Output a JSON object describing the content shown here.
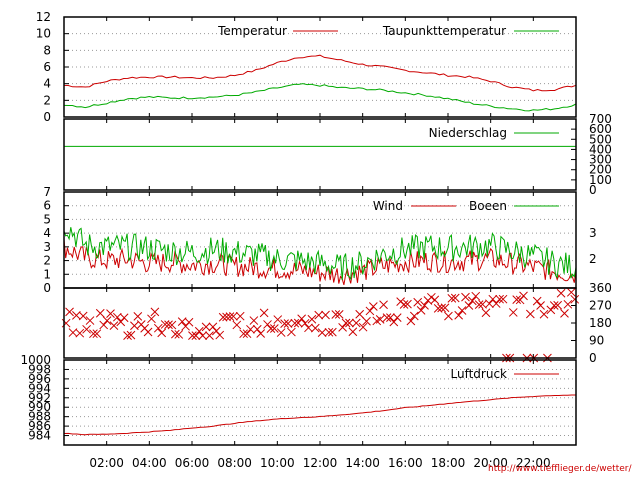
{
  "credit": "http://www.tiefflieger.de/wetter/",
  "colors": {
    "red": "#cc0000",
    "green": "#00aa00",
    "grid": "#999999"
  },
  "chart_data": [
    {
      "id": "temp",
      "type": "line",
      "ylim": [
        0,
        12
      ],
      "yticks": [
        "0",
        "2",
        "4",
        "6",
        "8",
        "10",
        "12"
      ],
      "grid": true,
      "legend": "top-right",
      "series": [
        {
          "name": "Temperatur",
          "color": "#cc0000",
          "x": [
            0,
            1,
            2,
            3,
            4,
            5,
            6,
            7,
            8,
            9,
            10,
            11,
            12,
            13,
            14,
            15,
            16,
            17,
            18,
            19,
            20,
            21,
            22,
            23,
            24
          ],
          "y": [
            3.8,
            3.6,
            4.3,
            4.7,
            4.8,
            4.8,
            4.7,
            4.7,
            5.0,
            5.6,
            6.5,
            7.2,
            7.3,
            6.8,
            6.3,
            6.0,
            5.6,
            5.3,
            5.0,
            4.8,
            4.3,
            3.6,
            3.2,
            3.3,
            3.8
          ]
        },
        {
          "name": "Taupunkttemperatur",
          "color": "#00aa00",
          "x": [
            0,
            1,
            2,
            3,
            4,
            5,
            6,
            7,
            8,
            9,
            10,
            11,
            12,
            13,
            14,
            15,
            16,
            17,
            18,
            19,
            20,
            21,
            22,
            23,
            24
          ],
          "y": [
            1.5,
            1.2,
            1.7,
            2.2,
            2.4,
            2.3,
            2.3,
            2.4,
            2.6,
            3.0,
            3.5,
            3.9,
            3.8,
            3.5,
            3.4,
            3.2,
            2.9,
            2.6,
            2.2,
            1.7,
            1.3,
            1.0,
            0.8,
            1.0,
            1.5
          ]
        }
      ]
    },
    {
      "id": "rain",
      "type": "line",
      "ylim": [
        0,
        700
      ],
      "yticks": [
        "0",
        "100",
        "200",
        "300",
        "400",
        "500",
        "600",
        "700"
      ],
      "grid": false,
      "legend": "top-right",
      "series": [
        {
          "name": "Niederschlag",
          "color": "#00aa00",
          "x": [
            0,
            24
          ],
          "y": [
            430,
            430
          ]
        }
      ]
    },
    {
      "id": "wind",
      "type": "line",
      "ylim": [
        0,
        7
      ],
      "yticks": [
        "0",
        "1",
        "2",
        "3",
        "4",
        "5",
        "6",
        "7"
      ],
      "right_ticks": [
        {
          "label": "2",
          "value": 2.1
        },
        {
          "label": "3",
          "value": 4.0
        }
      ],
      "grid": true,
      "legend": "top-right",
      "series": [
        {
          "name": "Wind",
          "color": "#cc0000",
          "x": [
            0,
            1,
            2,
            3,
            4,
            5,
            6,
            7,
            8,
            9,
            10,
            11,
            12,
            13,
            14,
            15,
            16,
            17,
            18,
            19,
            20,
            21,
            22,
            23,
            24
          ],
          "y": [
            3.0,
            2.2,
            2.0,
            2.1,
            1.8,
            1.9,
            1.7,
            1.8,
            1.6,
            1.5,
            1.4,
            1.3,
            1.1,
            1.0,
            1.2,
            1.6,
            1.9,
            2.0,
            1.9,
            2.0,
            2.1,
            1.8,
            1.5,
            1.2,
            1.0
          ]
        },
        {
          "name": "Boeen",
          "color": "#00aa00",
          "x": [
            0,
            1,
            2,
            3,
            4,
            5,
            6,
            7,
            8,
            9,
            10,
            11,
            12,
            13,
            14,
            15,
            16,
            17,
            18,
            19,
            20,
            21,
            22,
            23,
            24
          ],
          "y": [
            4.8,
            3.1,
            3.0,
            3.0,
            2.9,
            2.7,
            2.6,
            2.8,
            2.6,
            2.4,
            2.1,
            2.0,
            1.8,
            1.5,
            1.8,
            2.5,
            2.8,
            3.0,
            2.9,
            3.0,
            3.1,
            2.7,
            2.3,
            1.8,
            1.5
          ]
        }
      ]
    },
    {
      "id": "dir",
      "type": "scatter",
      "ylim": [
        0,
        360
      ],
      "yticks": [
        "0",
        "90",
        "180",
        "270",
        "360"
      ],
      "grid": false,
      "marker": "x",
      "color": "#cc0000",
      "x": [
        0,
        1,
        2,
        3,
        4,
        5,
        6,
        7,
        8,
        9,
        10,
        11,
        12,
        13,
        14,
        15,
        16,
        17,
        18,
        19,
        20,
        21,
        22,
        23,
        24
      ],
      "y": [
        180,
        170,
        170,
        160,
        180,
        170,
        160,
        160,
        170,
        170,
        175,
        180,
        175,
        180,
        180,
        230,
        230,
        250,
        260,
        270,
        280,
        280,
        270,
        270,
        280
      ]
    },
    {
      "id": "pressure",
      "type": "line",
      "ylim": [
        982,
        1000
      ],
      "yticks": [
        "984",
        "986",
        "988",
        "990",
        "992",
        "994",
        "996",
        "998",
        "1000"
      ],
      "grid": true,
      "legend": "top-right",
      "series": [
        {
          "name": "Luftdruck",
          "color": "#cc0000",
          "x": [
            0,
            1,
            2,
            3,
            4,
            5,
            6,
            7,
            8,
            9,
            10,
            11,
            12,
            13,
            14,
            15,
            16,
            17,
            18,
            19,
            20,
            21,
            22,
            23,
            24
          ],
          "y": [
            984.5,
            984.2,
            984.3,
            984.5,
            984.8,
            985.1,
            985.6,
            986.0,
            986.6,
            987.1,
            987.5,
            987.8,
            988.0,
            988.4,
            988.8,
            989.3,
            989.9,
            990.3,
            990.8,
            991.2,
            991.6,
            992.0,
            992.3,
            992.5,
            992.6
          ]
        }
      ]
    }
  ],
  "xaxis": {
    "range_hours": [
      0,
      24
    ],
    "tick_hours": [
      2,
      4,
      6,
      8,
      10,
      12,
      14,
      16,
      18,
      20,
      22
    ],
    "tick_labels": [
      "02:00",
      "04:00",
      "06:00",
      "08:00",
      "10:00",
      "12:00",
      "14:00",
      "16:00",
      "18:00",
      "20:00",
      "22:00"
    ]
  }
}
